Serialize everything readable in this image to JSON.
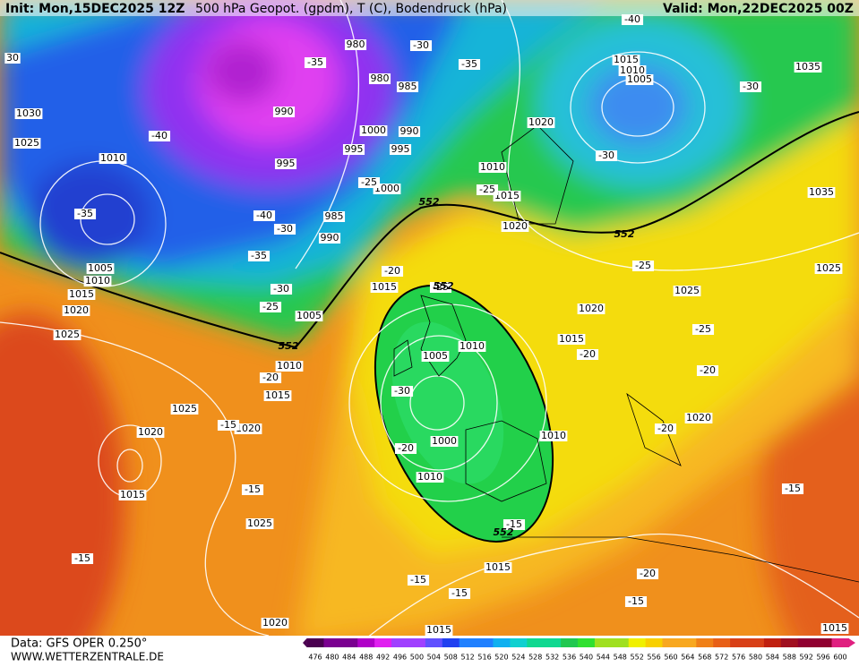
{
  "header": {
    "init": "Init: Mon,15DEC2025 12Z",
    "title": "500 hPa Geopot. (gpdm), T (C), Bodendruck (hPa)",
    "valid": "Valid: Mon,22DEC2025 00Z"
  },
  "footer": {
    "data_source": "Data: GFS OPER 0.250°",
    "url": "WWW.WETTERZENTRALE.DE"
  },
  "colorbar": {
    "labels": [
      476,
      480,
      484,
      488,
      492,
      496,
      500,
      504,
      508,
      512,
      516,
      520,
      524,
      528,
      532,
      536,
      540,
      544,
      548,
      552,
      556,
      560,
      564,
      568,
      572,
      576,
      580,
      584,
      588,
      592,
      596,
      600
    ]
  },
  "map": {
    "isobar_labels": [
      "980",
      "980",
      "985",
      "990",
      "990",
      "1000",
      "995",
      "995",
      "995",
      "1000",
      "985",
      "990",
      "1015",
      "1010",
      "1005",
      "1020",
      "1010",
      "1015",
      "1020",
      "1035",
      "1035",
      "1025",
      "1025",
      "1020",
      "1015",
      "1010",
      "1005",
      "1000",
      "1010",
      "1010",
      "1020",
      "1030",
      "1025",
      "1010",
      "1005",
      "1010",
      "1015",
      "1020",
      "1025",
      "1005",
      "1010",
      "1015",
      "1025",
      "1020",
      "1020",
      "1015",
      "1025",
      "1015",
      "1015",
      "1020",
      "1015",
      "1015"
    ],
    "temperature_labels": [
      "-30",
      "-35",
      "-35",
      "-40",
      "-40",
      "-30",
      "-30",
      "-25",
      "-25",
      "-35",
      "-40",
      "-30",
      "-35",
      "-30",
      "-25",
      "-20",
      "-25",
      "-25",
      "-25",
      "-20",
      "-20",
      "-30",
      "-20",
      "-20",
      "-15",
      "-15",
      "-20",
      "-15",
      "-15",
      "-15",
      "-15",
      "-15",
      "-20",
      "-15",
      "30"
    ],
    "height_labels": [
      "552",
      "552",
      "552",
      "552",
      "552"
    ]
  }
}
